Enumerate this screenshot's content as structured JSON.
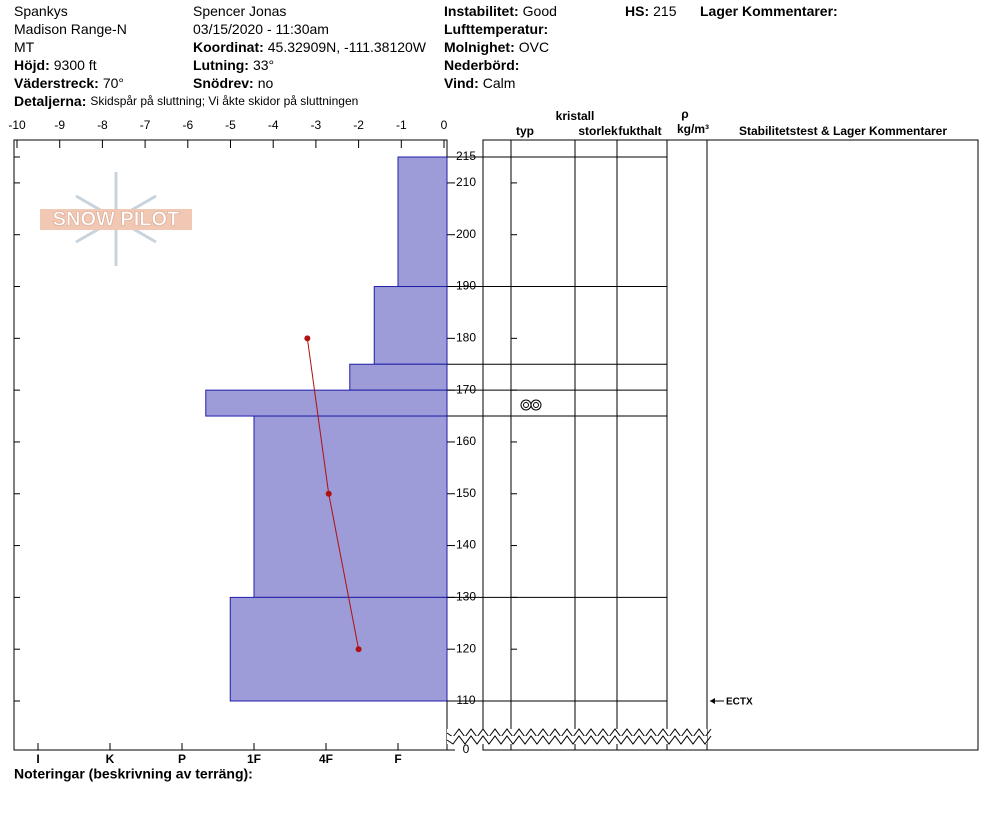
{
  "header": {
    "columns": [
      [
        {
          "value": "Spankys"
        },
        {
          "value": "Madison Range-N"
        },
        {
          "value": "MT"
        },
        {
          "label": "Höjd:",
          "value": "9300 ft"
        },
        {
          "label": "Väderstreck:",
          "value": "70°"
        }
      ],
      [
        {
          "value": "Spencer Jonas"
        },
        {
          "value": "03/15/2020 - 11:30am"
        },
        {
          "label": "Koordinat:",
          "value": "45.32909N, -111.38120W"
        },
        {
          "label": "Lutning:",
          "value": "33°"
        },
        {
          "label": "Snödrev:",
          "value": "no"
        }
      ],
      [
        {
          "label": "Instabilitet:",
          "value": "Good"
        },
        {
          "label": "Lufttemperatur:"
        },
        {
          "label": "Molnighet:",
          "value": "OVC"
        },
        {
          "label": "Nederbörd:"
        },
        {
          "label": "Vind:",
          "value": "Calm"
        }
      ],
      [
        {
          "label": "HS:",
          "value": "215"
        }
      ],
      [
        {
          "label": "Lager Kommentarer:"
        }
      ]
    ],
    "details": {
      "label": "Detaljerna:",
      "value": "Skidspår på sluttning;  Vi åkte skidor på sluttningen"
    },
    "logo": "SNOW PILOT",
    "notes": "Noteringar (beskrivning av terräng):"
  },
  "chart_data": {
    "type": "snowprofile",
    "xticks": [
      -10,
      -9,
      -8,
      -7,
      -6,
      -5,
      -4,
      -3,
      -2,
      -1,
      0
    ],
    "xlim": [
      -10,
      0
    ],
    "hardness_ticks": [
      {
        "value": 6,
        "label": "I"
      },
      {
        "value": 5,
        "label": "K"
      },
      {
        "value": 4,
        "label": "P"
      },
      {
        "value": 3,
        "label": "1F"
      },
      {
        "value": 2,
        "label": "4F"
      },
      {
        "value": 1,
        "label": "F"
      }
    ],
    "ylim": [
      110,
      215
    ],
    "yticks": [
      0,
      110,
      120,
      130,
      140,
      150,
      160,
      170,
      180,
      190,
      200,
      210,
      215
    ],
    "axis_break": true,
    "layer_color": "#9d9bd8",
    "layer_edge": "#1f1fa8",
    "layers": {
      "top": [
        215,
        190,
        175,
        170,
        165,
        130
      ],
      "bottom": [
        190,
        175,
        170,
        165,
        130,
        110
      ],
      "hardness": [
        1,
        1.33,
        1.67,
        3.67,
        3,
        3.33
      ]
    },
    "temperature": {
      "color": "#b01010",
      "height": [
        180,
        150,
        120
      ],
      "values": [
        -3.2,
        -2.7,
        -2.0
      ]
    },
    "columns": {
      "crystal": "kristall",
      "type": "typ",
      "size": "storlek",
      "moisture": "fukthalt",
      "rho": "ρ",
      "density": "kg/m³",
      "comments": "Stabilitetstest & Lager Kommentarer"
    },
    "stability_tests": [
      {
        "height": 110,
        "label": "ECTX"
      }
    ]
  }
}
